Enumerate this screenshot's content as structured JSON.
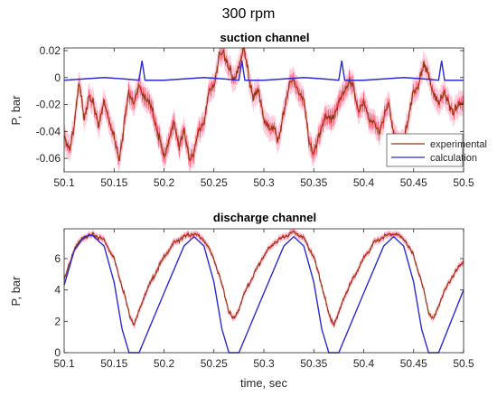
{
  "figure_title": "300 rpm",
  "colors": {
    "experimental": "#8B3A0F",
    "calculation": "#2A2AD4",
    "raw_band": "#FF2A4A",
    "band_fill": "#FFC8D8"
  },
  "chart_data": [
    {
      "type": "line",
      "title": "suction channel",
      "xlabel": "",
      "ylabel": "P, bar",
      "xlim": [
        50.1,
        50.5
      ],
      "ylim": [
        -0.07,
        0.022
      ],
      "xticks": [
        50.1,
        50.15,
        50.2,
        50.25,
        50.3,
        50.35,
        50.4,
        50.45,
        50.5
      ],
      "xtick_labels": [
        "50.1",
        "50.15",
        "50.2",
        "50.25",
        "50.3",
        "50.35",
        "50.4",
        "50.45",
        "50.5"
      ],
      "yticks": [
        -0.06,
        -0.04,
        -0.02,
        0,
        0.02
      ],
      "ytick_labels": [
        "-0.06",
        "-0.04",
        "-0.02",
        "0",
        "0.02"
      ],
      "grid": false,
      "legend": "bottom-right",
      "legend_entries": [
        "experimental",
        "calculation"
      ],
      "series": [
        {
          "name": "experimental",
          "x": [
            50.1,
            50.105,
            50.11,
            50.115,
            50.12,
            50.125,
            50.13,
            50.135,
            50.14,
            50.145,
            50.15,
            50.155,
            50.16,
            50.165,
            50.17,
            50.175,
            50.18,
            50.185,
            50.19,
            50.195,
            50.2,
            50.205,
            50.21,
            50.215,
            50.22,
            50.225,
            50.23,
            50.235,
            50.24,
            50.245,
            50.25,
            50.255,
            50.26,
            50.265,
            50.27,
            50.275,
            50.28,
            50.285,
            50.29,
            50.295,
            50.3,
            50.305,
            50.31,
            50.315,
            50.32,
            50.325,
            50.33,
            50.335,
            50.34,
            50.345,
            50.35,
            50.355,
            50.36,
            50.365,
            50.37,
            50.375,
            50.38,
            50.385,
            50.39,
            50.395,
            50.4,
            50.405,
            50.41,
            50.415,
            50.42,
            50.425,
            50.43,
            50.435,
            50.44,
            50.445,
            50.45,
            50.455,
            50.46,
            50.465,
            50.47,
            50.475,
            50.48,
            50.485,
            50.49,
            50.495,
            50.5
          ],
          "y": [
            -0.045,
            -0.055,
            -0.035,
            -0.005,
            -0.028,
            -0.015,
            -0.022,
            -0.035,
            -0.018,
            -0.03,
            -0.045,
            -0.06,
            -0.035,
            -0.01,
            -0.018,
            -0.008,
            -0.012,
            -0.02,
            -0.028,
            -0.045,
            -0.06,
            -0.045,
            -0.035,
            -0.05,
            -0.04,
            -0.06,
            -0.055,
            -0.04,
            -0.032,
            -0.012,
            -0.005,
            0.015,
            0.018,
            0.008,
            -0.005,
            0.01,
            0.021,
            0.0,
            -0.015,
            -0.01,
            -0.03,
            -0.04,
            -0.035,
            -0.048,
            -0.025,
            -0.005,
            -0.003,
            -0.01,
            -0.018,
            -0.045,
            -0.058,
            -0.045,
            -0.03,
            -0.032,
            -0.028,
            -0.02,
            -0.01,
            -0.003,
            -0.008,
            -0.025,
            -0.02,
            -0.028,
            -0.035,
            -0.04,
            -0.03,
            -0.02,
            -0.04,
            -0.052,
            -0.045,
            -0.03,
            -0.01,
            -0.005,
            0.008,
            0.005,
            -0.015,
            -0.018,
            -0.012,
            -0.02,
            -0.025,
            -0.022,
            -0.018
          ]
        },
        {
          "name": "calculation",
          "x": [
            50.1,
            50.12,
            50.14,
            50.16,
            50.175,
            50.178,
            50.181,
            50.2,
            50.22,
            50.24,
            50.26,
            50.275,
            50.278,
            50.281,
            50.3,
            50.32,
            50.34,
            50.36,
            50.375,
            50.378,
            50.381,
            50.4,
            50.42,
            50.44,
            50.46,
            50.475,
            50.478,
            50.481,
            50.5
          ],
          "y": [
            -0.002,
            -0.001,
            0.0,
            -0.001,
            -0.002,
            0.0125,
            -0.002,
            -0.002,
            -0.001,
            0.0,
            -0.001,
            -0.002,
            0.0125,
            -0.002,
            -0.002,
            -0.001,
            0.0,
            -0.001,
            -0.002,
            0.0125,
            -0.002,
            -0.002,
            -0.001,
            0.0,
            -0.001,
            -0.002,
            0.0125,
            -0.002,
            -0.002
          ]
        }
      ]
    },
    {
      "type": "line",
      "title": "discharge channel",
      "xlabel": "time, sec",
      "ylabel": "P, bar",
      "xlim": [
        50.1,
        50.5
      ],
      "ylim": [
        0,
        7.9
      ],
      "xticks": [
        50.1,
        50.15,
        50.2,
        50.25,
        50.3,
        50.35,
        50.4,
        50.45,
        50.5
      ],
      "xtick_labels": [
        "50.1",
        "50.15",
        "50.2",
        "50.25",
        "50.3",
        "50.35",
        "50.4",
        "50.45",
        "50.5"
      ],
      "yticks": [
        0,
        2,
        4,
        6
      ],
      "ytick_labels": [
        "0",
        "2",
        "4",
        "6"
      ],
      "grid": false,
      "series": [
        {
          "name": "experimental",
          "x": [
            50.1,
            50.11,
            50.12,
            50.13,
            50.14,
            50.15,
            50.16,
            50.165,
            50.17,
            50.175,
            50.18,
            50.19,
            50.2,
            50.21,
            50.22,
            50.23,
            50.24,
            50.25,
            50.26,
            50.265,
            50.27,
            50.275,
            50.28,
            50.29,
            50.3,
            50.31,
            50.32,
            50.33,
            50.34,
            50.35,
            50.36,
            50.365,
            50.37,
            50.375,
            50.38,
            50.39,
            50.4,
            50.41,
            50.42,
            50.43,
            50.44,
            50.45,
            50.46,
            50.465,
            50.47,
            50.475,
            50.48,
            50.49,
            50.5
          ],
          "y": [
            4.6,
            6.6,
            7.4,
            7.5,
            7.2,
            6.0,
            3.8,
            2.5,
            1.8,
            2.6,
            3.6,
            4.9,
            6.1,
            7.0,
            7.4,
            7.6,
            7.2,
            6.0,
            3.9,
            2.6,
            2.1,
            2.8,
            3.7,
            5.0,
            6.2,
            7.0,
            7.4,
            7.7,
            7.3,
            6.1,
            3.8,
            2.4,
            1.8,
            2.5,
            3.5,
            4.8,
            6.0,
            7.0,
            7.4,
            7.6,
            7.3,
            6.2,
            4.0,
            2.6,
            2.1,
            3.0,
            3.8,
            5.0,
            5.8
          ]
        },
        {
          "name": "calculation",
          "x": [
            50.1,
            50.11,
            50.12,
            50.128,
            50.14,
            50.15,
            50.158,
            50.165,
            50.175,
            50.2,
            50.22,
            50.23,
            50.24,
            50.25,
            50.258,
            50.265,
            50.275,
            50.3,
            50.32,
            50.33,
            50.34,
            50.35,
            50.358,
            50.365,
            50.375,
            50.4,
            50.42,
            50.43,
            50.44,
            50.45,
            50.458,
            50.465,
            50.475,
            50.5
          ],
          "y": [
            4.3,
            6.5,
            7.4,
            7.5,
            6.8,
            4.5,
            1.5,
            0,
            0,
            3.8,
            6.8,
            7.4,
            6.8,
            4.5,
            1.5,
            0,
            0,
            3.8,
            6.8,
            7.4,
            6.8,
            4.5,
            1.5,
            0,
            0,
            3.8,
            6.8,
            7.4,
            6.8,
            4.5,
            1.5,
            0,
            0,
            4.0
          ]
        }
      ]
    }
  ]
}
